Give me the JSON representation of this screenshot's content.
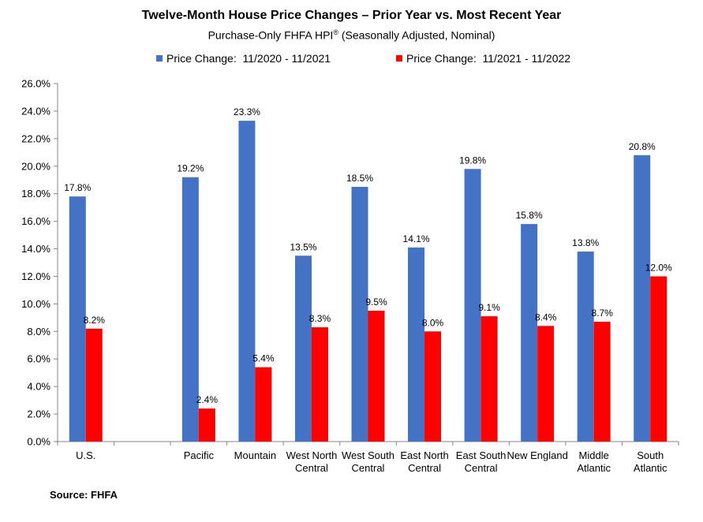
{
  "chart_data": {
    "type": "bar",
    "title": "Twelve-Month House Price Changes – Prior Year vs. Most Recent Year",
    "subtitle": "Purchase-Only FHFA HPI",
    "subtitle_sup": "®",
    "subtitle_tail": " (Seasonally Adjusted, Nominal)",
    "categories": [
      [
        "U.S."
      ],
      [
        "Pacific"
      ],
      [
        "Mountain"
      ],
      [
        "West North",
        "Central"
      ],
      [
        "West South",
        "Central"
      ],
      [
        "East North",
        "Central"
      ],
      [
        "East South",
        "Central"
      ],
      [
        "New England"
      ],
      [
        "Middle",
        "Atlantic"
      ],
      [
        "South",
        "Atlantic"
      ]
    ],
    "series": [
      {
        "name": "Price Change:  11/2020 - 11/2021",
        "color": "#4472C4",
        "values": [
          17.8,
          19.2,
          23.3,
          13.5,
          18.5,
          14.1,
          19.8,
          15.8,
          13.8,
          20.8
        ],
        "labels": [
          "17.8%",
          "19.2%",
          "23.3%",
          "13.5%",
          "18.5%",
          "14.1%",
          "19.8%",
          "15.8%",
          "13.8%",
          "20.8%"
        ]
      },
      {
        "name": "Price Change:  11/2021 - 11/2022",
        "color": "#FF0000",
        "values": [
          8.2,
          2.4,
          5.4,
          8.3,
          9.5,
          8.0,
          9.1,
          8.4,
          8.7,
          12.0
        ],
        "labels": [
          "8.2%",
          "2.4%",
          "5.4%",
          "8.3%",
          "9.5%",
          "8.0%",
          "9.1%",
          "8.4%",
          "8.7%",
          "12.0%"
        ]
      }
    ],
    "ylim": [
      0,
      26
    ],
    "yticks": [
      "0.0%",
      "2.0%",
      "4.0%",
      "6.0%",
      "8.0%",
      "10.0%",
      "12.0%",
      "14.0%",
      "16.0%",
      "18.0%",
      "20.0%",
      "22.0%",
      "24.0%",
      "26.0%"
    ],
    "grid": false,
    "legend_position": "top",
    "xlabel": "",
    "ylabel": ""
  },
  "source": "Source: FHFA"
}
